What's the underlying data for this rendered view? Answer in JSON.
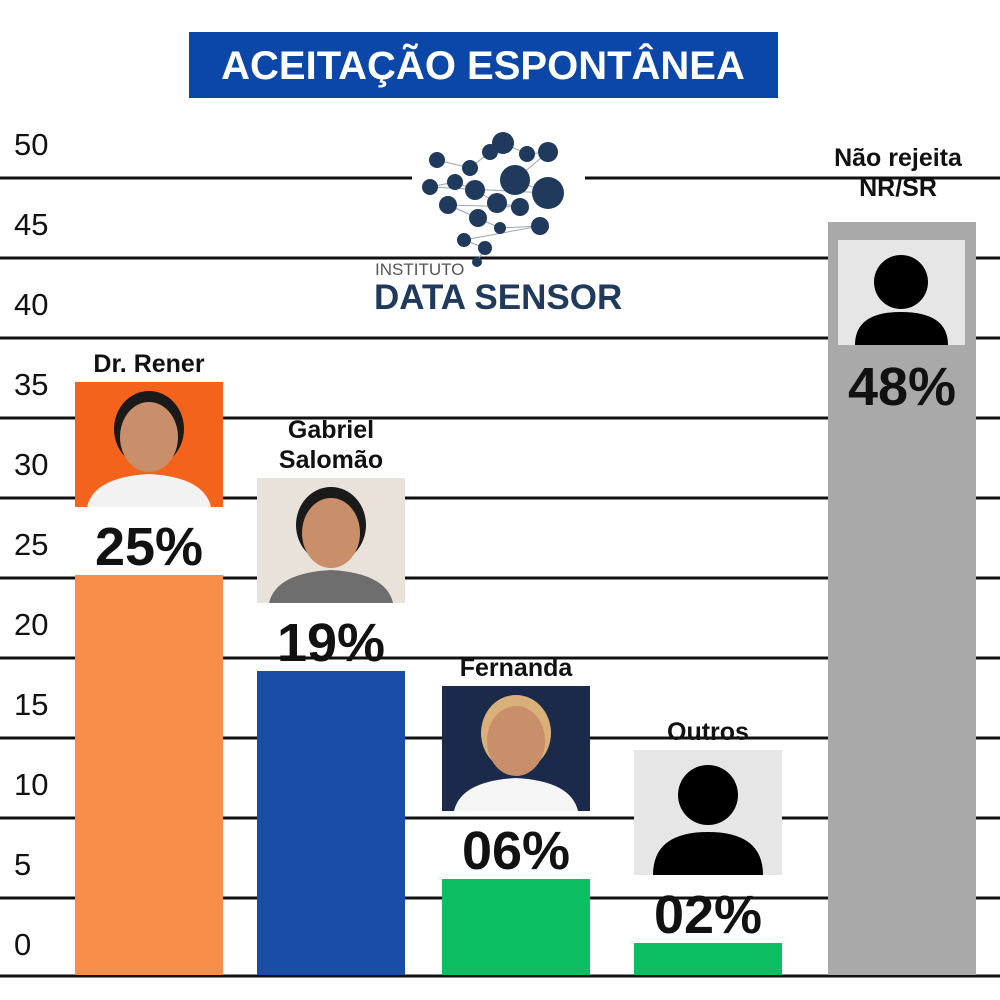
{
  "chart_data": {
    "type": "bar",
    "title": "ACEITAÇÃO ESPONTÂNEA",
    "xlabel": "",
    "ylabel": "",
    "ylim": [
      0,
      50
    ],
    "yticks": [
      0,
      5,
      10,
      15,
      20,
      25,
      30,
      35,
      40,
      45,
      50
    ],
    "grid": true,
    "categories": [
      {
        "lines": [
          "Dr. Rener"
        ],
        "photo": "candidate-photo"
      },
      {
        "lines": [
          "Gabriel",
          "Salomão"
        ],
        "photo": "candidate-photo"
      },
      {
        "lines": [
          "Fernanda"
        ],
        "photo": "candidate-photo"
      },
      {
        "lines": [
          "Outros"
        ],
        "photo": "person-placeholder-icon"
      },
      {
        "lines": [
          "Não rejeita",
          "NR/SR"
        ],
        "photo": "person-placeholder-icon"
      }
    ],
    "values": [
      25,
      19,
      6,
      2,
      48
    ],
    "value_labels": [
      "25%",
      "19%",
      "06%",
      "02%",
      "48%"
    ],
    "colors": [
      "#F98E4A",
      "#1A4DA8",
      "#0DBF63",
      "#0DBF63",
      "#A9A9A9"
    ]
  },
  "logo": {
    "line1": "INSTITUTO",
    "line2": "DATA SENSOR",
    "color": "#1F3A5C"
  },
  "title_bg": "#0A47A8"
}
